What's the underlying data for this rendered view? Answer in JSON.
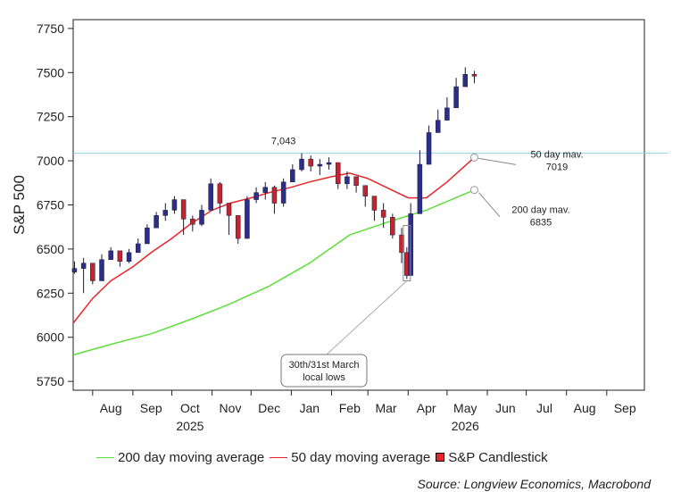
{
  "chart_data": {
    "type": "candlestick",
    "ylabel": "S&P 500",
    "ylim": [
      5700,
      7800
    ],
    "yticks": [
      5750,
      6000,
      6250,
      6500,
      6750,
      7000,
      7250,
      7500,
      7750
    ],
    "ytick_labels": [
      "5750",
      "6000",
      "6250",
      "6500",
      "6750",
      "7000",
      "7250",
      "7500",
      "7750"
    ],
    "xlim": [
      "2025-07-17",
      "2026-09-30"
    ],
    "month_ticks": [
      {
        "label": "Aug",
        "date": "2025-08-15"
      },
      {
        "label": "Sep",
        "date": "2025-09-15"
      },
      {
        "label": "Oct",
        "date": "2025-10-15"
      },
      {
        "label": "Nov",
        "date": "2025-11-15"
      },
      {
        "label": "Dec",
        "date": "2025-12-15"
      },
      {
        "label": "Jan",
        "date": "2026-01-15"
      },
      {
        "label": "Feb",
        "date": "2026-02-15"
      },
      {
        "label": "Mar",
        "date": "2026-03-15"
      },
      {
        "label": "Apr",
        "date": "2026-04-15"
      },
      {
        "label": "May",
        "date": "2026-05-15"
      },
      {
        "label": "Jun",
        "date": "2026-06-15"
      },
      {
        "label": "Jul",
        "date": "2026-07-15"
      },
      {
        "label": "Aug",
        "date": "2026-08-15"
      },
      {
        "label": "Sep",
        "date": "2026-09-15"
      }
    ],
    "year_labels": [
      {
        "label": "2025",
        "date": "2025-10-15"
      },
      {
        "label": "2026",
        "date": "2026-05-15"
      }
    ],
    "reference_line": {
      "value": 7043,
      "label": "7,043",
      "label_date": "2025-12-26"
    },
    "close_series": {
      "name": "S&P Candlestick",
      "x": [
        "2025-07-18",
        "2025-07-25",
        "2025-08-01",
        "2025-08-08",
        "2025-08-15",
        "2025-08-22",
        "2025-08-29",
        "2025-09-05",
        "2025-09-12",
        "2025-09-19",
        "2025-09-26",
        "2025-10-03",
        "2025-10-10",
        "2025-10-17",
        "2025-10-24",
        "2025-10-31",
        "2025-11-07",
        "2025-11-14",
        "2025-11-21",
        "2025-11-28",
        "2025-12-05",
        "2025-12-12",
        "2025-12-19",
        "2025-12-26",
        "2026-01-02",
        "2026-01-09",
        "2026-01-16",
        "2026-01-23",
        "2026-01-30",
        "2026-02-06",
        "2026-02-13",
        "2026-02-20",
        "2026-02-27",
        "2026-03-06",
        "2026-03-13",
        "2026-03-20",
        "2026-03-27",
        "2026-03-31",
        "2026-04-03",
        "2026-04-10",
        "2026-04-17",
        "2026-04-24",
        "2026-05-01",
        "2026-05-08",
        "2026-05-15",
        "2026-05-22"
      ],
      "close": [
        6390,
        6420,
        6320,
        6440,
        6490,
        6430,
        6480,
        6530,
        6620,
        6690,
        6720,
        6780,
        6670,
        6640,
        6720,
        6870,
        6760,
        6690,
        6560,
        6780,
        6820,
        6850,
        6760,
        6880,
        6950,
        7010,
        6970,
        6980,
        6990,
        6870,
        6910,
        6860,
        6800,
        6720,
        6680,
        6580,
        6480,
        6350,
        6700,
        6980,
        7160,
        7230,
        7300,
        7420,
        7490,
        7480
      ],
      "high": [
        6430,
        6450,
        6400,
        6470,
        6510,
        6480,
        6500,
        6560,
        6640,
        6710,
        6760,
        6800,
        6740,
        6690,
        6750,
        6900,
        6880,
        6760,
        6620,
        6800,
        6850,
        6880,
        6860,
        6900,
        6980,
        7043,
        7030,
        7010,
        7020,
        6980,
        6940,
        6910,
        6860,
        6800,
        6760,
        6700,
        6620,
        6510,
        6760,
        7060,
        7200,
        7290,
        7360,
        7470,
        7530,
        7510
      ],
      "low": [
        6360,
        6250,
        6300,
        6380,
        6440,
        6400,
        6420,
        6480,
        6560,
        6640,
        6660,
        6700,
        6580,
        6600,
        6630,
        6760,
        6700,
        6580,
        6530,
        6600,
        6760,
        6780,
        6700,
        6740,
        6890,
        6940,
        6940,
        6920,
        6950,
        6840,
        6840,
        6820,
        6740,
        6660,
        6620,
        6560,
        6420,
        6330,
        6600,
        6920,
        7080,
        7180,
        7240,
        7360,
        7420,
        7440
      ]
    },
    "series": [
      {
        "name": "50 day moving average",
        "color": "#e8262a",
        "x": [
          "2025-07-17",
          "2025-08-01",
          "2025-08-15",
          "2025-09-01",
          "2025-09-15",
          "2025-10-01",
          "2025-10-15",
          "2025-11-01",
          "2025-11-15",
          "2025-12-01",
          "2025-12-15",
          "2026-01-01",
          "2026-01-15",
          "2026-02-01",
          "2026-02-15",
          "2026-03-01",
          "2026-03-15",
          "2026-04-01",
          "2026-04-15",
          "2026-05-01",
          "2026-05-22"
        ],
        "values": [
          6080,
          6220,
          6320,
          6400,
          6480,
          6560,
          6640,
          6720,
          6760,
          6790,
          6820,
          6850,
          6880,
          6910,
          6930,
          6900,
          6850,
          6790,
          6790,
          6880,
          7019
        ]
      },
      {
        "name": "200 day moving average",
        "color": "#5fdd3c",
        "x": [
          "2025-07-17",
          "2025-08-15",
          "2025-09-15",
          "2025-10-15",
          "2025-11-15",
          "2025-12-15",
          "2026-01-15",
          "2026-02-15",
          "2026-03-15",
          "2026-04-15",
          "2026-05-22"
        ],
        "values": [
          5900,
          5960,
          6020,
          6100,
          6190,
          6290,
          6420,
          6580,
          6650,
          6720,
          6835
        ]
      }
    ],
    "annotations": [
      {
        "lines": [
          "50 day mav.",
          "7019"
        ],
        "date": "2026-05-22",
        "value": 7019,
        "color": "#e8262a"
      },
      {
        "lines": [
          "200 day mav.",
          "6835"
        ],
        "date": "2026-05-22",
        "value": 6835,
        "color": "#5fdd3c"
      },
      {
        "lines": [
          "30th/31st March",
          "local lows"
        ],
        "date": "2026-03-31",
        "value": 6330
      }
    ],
    "legend_placement": "bottom",
    "grid": false
  },
  "legend": [
    {
      "label": "200 day moving average",
      "color": "#5fdd3c",
      "kind": "line"
    },
    {
      "label": "50 day moving average",
      "color": "#e8262a",
      "kind": "line"
    },
    {
      "label": "S&P Candlestick",
      "color": "#e8262a",
      "kind": "box"
    }
  ],
  "source": "Source: Longview Economics, Macrobond"
}
